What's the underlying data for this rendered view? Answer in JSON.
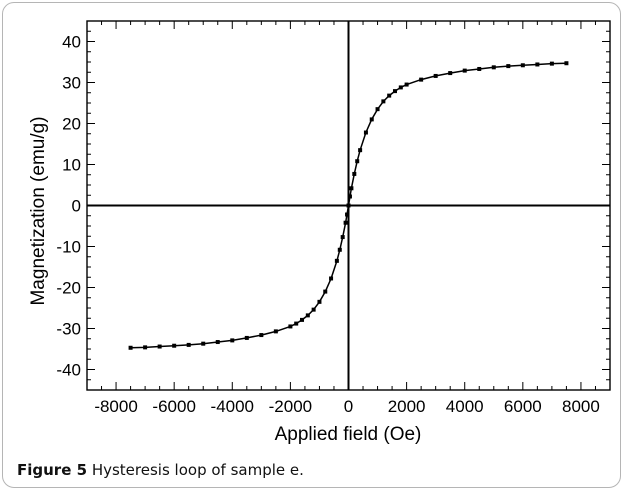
{
  "caption": {
    "label": "Figure 5",
    "text": "Hysteresis loop of sample e."
  },
  "chart_data": {
    "type": "scatter",
    "title": "",
    "xlabel": "Applied field (Oe)",
    "ylabel": "Magnetization (emu/g)",
    "xlim": [
      -9000,
      9000
    ],
    "ylim": [
      -45,
      45
    ],
    "xticks": [
      -8000,
      -6000,
      -4000,
      -2000,
      0,
      2000,
      4000,
      6000,
      8000
    ],
    "yticks": [
      -40,
      -30,
      -20,
      -10,
      0,
      10,
      20,
      30,
      40
    ],
    "grid": false,
    "legend": "none",
    "zero_lines": true,
    "series": [
      {
        "color": "#000000",
        "x": [
          -7500,
          -7000,
          -6500,
          -6000,
          -5500,
          -5000,
          -4500,
          -4000,
          -3500,
          -3000,
          -2500,
          -2000,
          -1800,
          -1600,
          -1400,
          -1200,
          -1000,
          -800,
          -600,
          -400,
          -300,
          -200,
          -100,
          -50,
          0,
          50,
          100,
          200,
          300,
          400,
          600,
          800,
          1000,
          1200,
          1400,
          1600,
          1800,
          2000,
          2500,
          3000,
          3500,
          4000,
          4500,
          5000,
          5500,
          6000,
          6500,
          7000,
          7500
        ],
        "y": [
          -34.7,
          -34.6,
          -34.4,
          -34.2,
          -34.0,
          -33.7,
          -33.3,
          -32.9,
          -32.3,
          -31.6,
          -30.7,
          -29.5,
          -28.8,
          -27.9,
          -26.8,
          -25.4,
          -23.5,
          -21.0,
          -17.8,
          -13.5,
          -10.8,
          -7.7,
          -4.2,
          -2.2,
          0,
          2.2,
          4.2,
          7.7,
          10.8,
          13.5,
          17.8,
          21.0,
          23.5,
          25.4,
          26.8,
          27.9,
          28.8,
          29.5,
          30.7,
          31.6,
          32.3,
          32.9,
          33.3,
          33.7,
          34.0,
          34.2,
          34.4,
          34.6,
          34.7
        ]
      }
    ]
  }
}
